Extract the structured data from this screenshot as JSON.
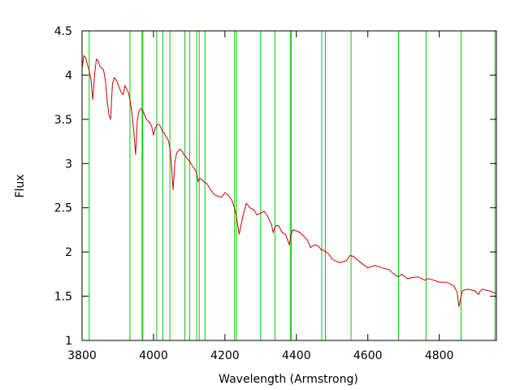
{
  "chart_data": {
    "type": "line",
    "title": "",
    "xlabel": "Wavelength (Armstrong)",
    "ylabel": "Flux",
    "xlim": [
      3800,
      4960
    ],
    "ylim": [
      1,
      4.5
    ],
    "x_ticks": [
      3800,
      4000,
      4200,
      4400,
      4600,
      4800
    ],
    "x_tick_labels": [
      "3800",
      "4000",
      "4200",
      "4400",
      "4600",
      "4800"
    ],
    "y_ticks": [
      1,
      1.5,
      2,
      2.5,
      3,
      3.5,
      4,
      4.5
    ],
    "y_tick_labels": [
      "1",
      "1.5",
      "2",
      "2.5",
      "3",
      "3.5",
      "4",
      "4.5"
    ],
    "grid": false,
    "colors": {
      "spectrum": "#cc0000",
      "lines": "#00cc00",
      "frame": "#000000"
    },
    "vertical_lines": [
      3797,
      3820,
      3934,
      3968,
      3970,
      4009,
      4026,
      4046,
      4088,
      4101,
      4121,
      4128,
      4144,
      4227,
      4232,
      4300,
      4340,
      4383,
      4386,
      4471,
      4481,
      4553,
      4686,
      4763,
      4861,
      4956
    ],
    "series": [
      {
        "x": [
          3800,
          3805,
          3810,
          3815,
          3820,
          3825,
          3830,
          3835,
          3840,
          3845,
          3850,
          3855,
          3860,
          3865,
          3870,
          3875,
          3880,
          3885,
          3890,
          3895,
          3900,
          3905,
          3910,
          3915,
          3920,
          3925,
          3930,
          3935,
          3940,
          3945,
          3950,
          3955,
          3960,
          3965,
          3970,
          3975,
          3980,
          3985,
          3990,
          3995,
          4000,
          4005,
          4010,
          4015,
          4020,
          4025,
          4030,
          4035,
          4040,
          4045,
          4050,
          4055,
          4060,
          4065,
          4070,
          4075,
          4080,
          4085,
          4090,
          4095,
          4100,
          4105,
          4110,
          4115,
          4120,
          4125,
          4130,
          4135,
          4140,
          4145,
          4150,
          4160,
          4170,
          4180,
          4190,
          4200,
          4210,
          4220,
          4230,
          4240,
          4250,
          4260,
          4270,
          4280,
          4290,
          4300,
          4310,
          4320,
          4325,
          4330,
          4335,
          4340,
          4345,
          4350,
          4360,
          4370,
          4380,
          4385,
          4390,
          4400,
          4410,
          4420,
          4430,
          4440,
          4450,
          4460,
          4465,
          4470,
          4475,
          4480,
          4490,
          4500,
          4520,
          4540,
          4550,
          4560,
          4580,
          4600,
          4620,
          4640,
          4660,
          4670,
          4680,
          4686,
          4695,
          4710,
          4740,
          4760,
          4770,
          4800,
          4820,
          4840,
          4850,
          4855,
          4861,
          4865,
          4870,
          4880,
          4900,
          4910,
          4915,
          4920,
          4940,
          4960
        ],
        "y": [
          4.08,
          4.22,
          4.2,
          4.12,
          4.05,
          3.95,
          3.72,
          4.0,
          4.18,
          4.16,
          4.1,
          4.08,
          4.06,
          3.95,
          3.72,
          3.55,
          3.5,
          3.9,
          3.97,
          3.95,
          3.9,
          3.85,
          3.8,
          3.78,
          3.88,
          3.84,
          3.8,
          3.7,
          3.55,
          3.35,
          3.1,
          3.5,
          3.6,
          3.62,
          3.6,
          3.55,
          3.5,
          3.48,
          3.46,
          3.42,
          3.32,
          3.4,
          3.44,
          3.44,
          3.42,
          3.36,
          3.35,
          3.3,
          3.28,
          3.2,
          3.0,
          2.7,
          3.02,
          3.12,
          3.15,
          3.16,
          3.14,
          3.1,
          3.08,
          3.05,
          3.03,
          3.0,
          2.96,
          2.94,
          2.9,
          2.8,
          2.83,
          2.82,
          2.8,
          2.78,
          2.77,
          2.7,
          2.65,
          2.63,
          2.62,
          2.67,
          2.64,
          2.58,
          2.45,
          2.2,
          2.4,
          2.55,
          2.5,
          2.48,
          2.42,
          2.44,
          2.46,
          2.4,
          2.35,
          2.32,
          2.22,
          2.28,
          2.3,
          2.3,
          2.22,
          2.2,
          2.08,
          2.2,
          2.25,
          2.24,
          2.22,
          2.18,
          2.14,
          2.05,
          2.08,
          2.07,
          2.05,
          2.02,
          2.02,
          2.01,
          1.98,
          1.92,
          1.88,
          1.9,
          1.96,
          1.95,
          1.88,
          1.82,
          1.85,
          1.82,
          1.8,
          1.76,
          1.73,
          1.72,
          1.75,
          1.7,
          1.72,
          1.68,
          1.7,
          1.66,
          1.66,
          1.62,
          1.55,
          1.38,
          1.5,
          1.56,
          1.57,
          1.58,
          1.56,
          1.52,
          1.56,
          1.58,
          1.56,
          1.53
        ]
      }
    ]
  }
}
